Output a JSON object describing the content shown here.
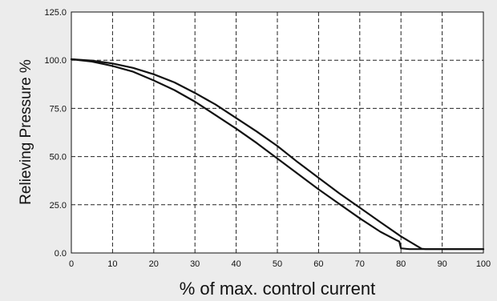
{
  "chart_data": {
    "type": "line",
    "title": "",
    "xlabel": "% of max. control current",
    "ylabel": "Relieving Pressure %",
    "xlim": [
      0,
      100
    ],
    "ylim": [
      0,
      125
    ],
    "xticks": [
      0,
      10,
      20,
      30,
      40,
      50,
      60,
      70,
      80,
      90,
      100
    ],
    "yticks": [
      0,
      25,
      50,
      75,
      100,
      125
    ],
    "xtick_labels": [
      "0",
      "10",
      "20",
      "30",
      "40",
      "50",
      "60",
      "70",
      "80",
      "90",
      "100"
    ],
    "ytick_labels": [
      "0.0",
      "25.0",
      "50.0",
      "75.0",
      "100.0",
      "125.0"
    ],
    "grid": true,
    "legend": "none",
    "series": [
      {
        "x": [
          0,
          5,
          10,
          15,
          20,
          25,
          30,
          35,
          40,
          45,
          50,
          55,
          60,
          65,
          70,
          75,
          80,
          85,
          86,
          90,
          95,
          100
        ],
        "y": [
          100.5,
          99.8,
          98.3,
          96,
          92.7,
          88.5,
          83,
          77,
          70,
          63,
          55.5,
          47,
          39,
          31,
          23.5,
          16,
          8.6,
          2.2,
          2,
          2,
          2,
          2
        ]
      },
      {
        "x": [
          0,
          5,
          10,
          15,
          20,
          25,
          30,
          35,
          40,
          45,
          50,
          55,
          60,
          65,
          70,
          75,
          79,
          79.6,
          80,
          82,
          90,
          95,
          100
        ],
        "y": [
          100.5,
          99.3,
          97,
          94,
          89.5,
          84.5,
          78.5,
          71.5,
          64.5,
          57,
          49,
          41,
          33,
          25.5,
          18,
          11,
          6.5,
          6,
          2.4,
          2,
          2,
          2,
          2
        ]
      }
    ],
    "colors": {
      "line": "#111111",
      "plot_background": "#ffffff",
      "page_background": "#ececec",
      "grid": "#222222"
    }
  }
}
